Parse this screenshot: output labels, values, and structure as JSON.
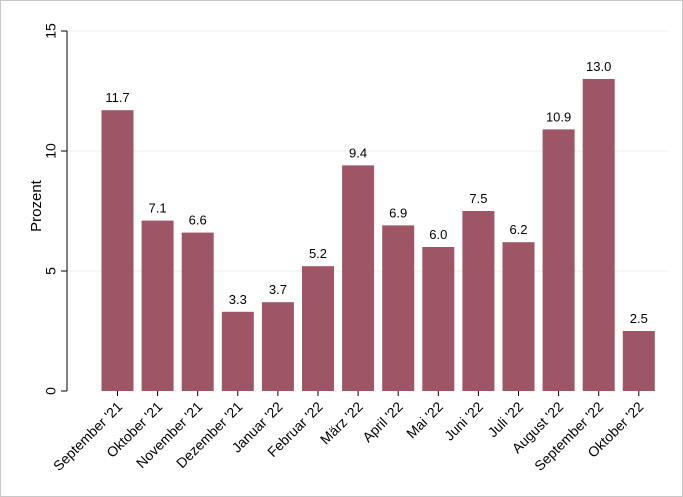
{
  "chart_data": {
    "type": "bar",
    "categories": [
      "September '21",
      "Oktober '21",
      "November '21",
      "Dezember '21",
      "Januar '22",
      "Februar '22",
      "März '22",
      "April '22",
      "Mai '22",
      "Juni '22",
      "Juli '22",
      "August '22",
      "September '22",
      "Oktober '22"
    ],
    "values": [
      11.7,
      7.1,
      6.6,
      3.3,
      3.7,
      5.2,
      9.4,
      6.9,
      6.0,
      7.5,
      6.2,
      10.9,
      13.0,
      2.5
    ],
    "value_labels": [
      "11.7",
      "7.1",
      "6.6",
      "3.3",
      "3.7",
      "5.2",
      "9.4",
      "6.9",
      "6.0",
      "7.5",
      "6.2",
      "10.9",
      "13.0",
      "2.5"
    ],
    "title": "",
    "xlabel": "",
    "ylabel": "Prozent",
    "ylim": [
      0,
      15
    ],
    "yticks": [
      0,
      5,
      10,
      15
    ],
    "ytick_labels": [
      "0",
      "5",
      "10",
      "15"
    ],
    "grid": true,
    "legend": "none",
    "bar_color": "#9e5566"
  }
}
